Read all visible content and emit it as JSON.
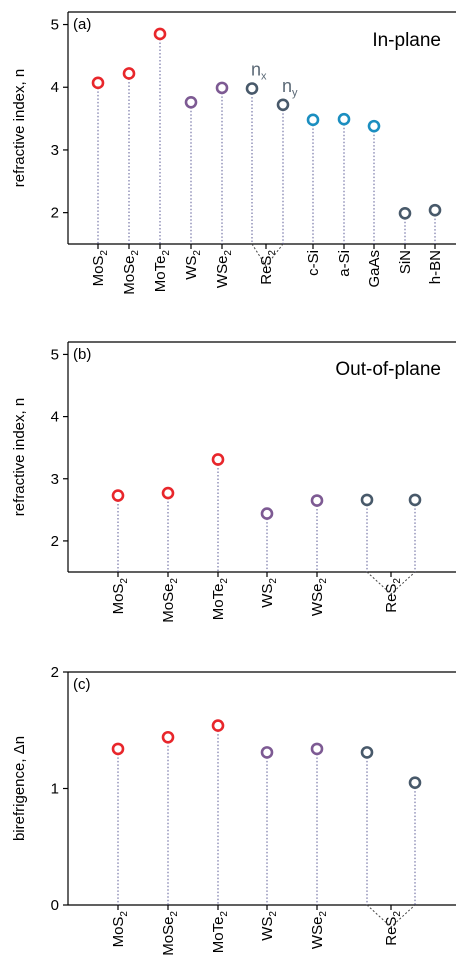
{
  "colors": {
    "red": "#e8262b",
    "purple": "#7d5a93",
    "slate": "#48596a",
    "blue": "#1b8ec0",
    "stem": "#5b5b96"
  },
  "chart_data": [
    {
      "type": "scatter",
      "panel": "(a)",
      "title": "In-plane",
      "ylabel": "refractive index, n",
      "ylim": [
        1.5,
        5.2
      ],
      "yticks": [
        "2",
        "3",
        "4",
        "5"
      ],
      "categories": [
        "MoS2",
        "MoSe2",
        "MoTe2",
        "WS2",
        "WSe2",
        "ReS2",
        "c-Si",
        "a-Si",
        "GaAs",
        "SiN",
        "h-BN"
      ],
      "points": [
        {
          "category": "MoS2",
          "value": 4.07,
          "color": "red"
        },
        {
          "category": "MoSe2",
          "value": 4.22,
          "color": "red"
        },
        {
          "category": "MoTe2",
          "value": 4.85,
          "color": "red"
        },
        {
          "category": "WS2",
          "value": 3.76,
          "color": "purple"
        },
        {
          "category": "WSe2",
          "value": 3.99,
          "color": "purple"
        },
        {
          "category": "ReS2",
          "value": 3.98,
          "color": "slate",
          "annotation": "nx"
        },
        {
          "category": "ReS2",
          "value": 3.72,
          "color": "slate",
          "annotation": "ny"
        },
        {
          "category": "c-Si",
          "value": 3.48,
          "color": "blue"
        },
        {
          "category": "a-Si",
          "value": 3.49,
          "color": "blue"
        },
        {
          "category": "GaAs",
          "value": 3.38,
          "color": "blue"
        },
        {
          "category": "SiN",
          "value": 1.99,
          "color": "slate"
        },
        {
          "category": "h-BN",
          "value": 2.04,
          "color": "slate"
        }
      ]
    },
    {
      "type": "scatter",
      "panel": "(b)",
      "title": "Out-of-plane",
      "ylabel": "refractive index, n",
      "ylim": [
        1.5,
        5.2
      ],
      "yticks": [
        "2",
        "3",
        "4",
        "5"
      ],
      "categories": [
        "MoS2",
        "MoSe2",
        "MoTe2",
        "WS2",
        "WSe2",
        "ReS2"
      ],
      "points": [
        {
          "category": "MoS2",
          "value": 2.73,
          "color": "red"
        },
        {
          "category": "MoSe2",
          "value": 2.77,
          "color": "red"
        },
        {
          "category": "MoTe2",
          "value": 3.31,
          "color": "red"
        },
        {
          "category": "WS2",
          "value": 2.44,
          "color": "purple"
        },
        {
          "category": "WSe2",
          "value": 2.65,
          "color": "purple"
        },
        {
          "category": "ReS2",
          "value": 2.66,
          "color": "slate"
        },
        {
          "category": "ReS2",
          "value": 2.66,
          "color": "slate"
        }
      ]
    },
    {
      "type": "scatter",
      "panel": "(c)",
      "ylabel": "birefrigence, Δn",
      "ylim": [
        0,
        2
      ],
      "yticks": [
        "0",
        "1",
        "2"
      ],
      "categories": [
        "MoS2",
        "MoSe2",
        "MoTe2",
        "WS2",
        "WSe2",
        "ReS2"
      ],
      "points": [
        {
          "category": "MoS2",
          "value": 1.34,
          "color": "red"
        },
        {
          "category": "MoSe2",
          "value": 1.44,
          "color": "red"
        },
        {
          "category": "MoTe2",
          "value": 1.54,
          "color": "red"
        },
        {
          "category": "WS2",
          "value": 1.31,
          "color": "purple"
        },
        {
          "category": "WSe2",
          "value": 1.34,
          "color": "purple"
        },
        {
          "category": "ReS2",
          "value": 1.31,
          "color": "slate"
        },
        {
          "category": "ReS2",
          "value": 1.05,
          "color": "slate"
        }
      ]
    }
  ]
}
